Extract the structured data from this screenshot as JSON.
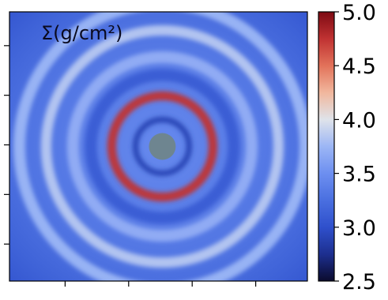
{
  "chart_data": {
    "type": "heatmap",
    "title": "Σ(g/cm²)",
    "xlabel": "",
    "ylabel": "",
    "colorbar": {
      "min": 2.5,
      "max": 5.0,
      "ticks": [
        2.5,
        3.0,
        3.5,
        4.0,
        4.5,
        5.0
      ],
      "tick_labels": [
        "2.5",
        "3.0",
        "3.5",
        "4.0",
        "4.5",
        "5.0"
      ],
      "stops": [
        {
          "value": 2.5,
          "color": "#0b0b2e"
        },
        {
          "value": 2.75,
          "color": "#1d2f8f"
        },
        {
          "value": 3.0,
          "color": "#2f50cc"
        },
        {
          "value": 3.25,
          "color": "#4a6fe0"
        },
        {
          "value": 3.5,
          "color": "#6d8ff0"
        },
        {
          "value": 3.75,
          "color": "#9cb6f5"
        },
        {
          "value": 4.0,
          "color": "#dfe3ea"
        },
        {
          "value": 4.25,
          "color": "#f1b79d"
        },
        {
          "value": 4.5,
          "color": "#e2725a"
        },
        {
          "value": 4.75,
          "color": "#c03232"
        },
        {
          "value": 5.0,
          "color": "#7d0a13"
        }
      ]
    },
    "background_level": 3.3,
    "central_hole_color": "#6e8590",
    "rings": [
      {
        "radius_frac": 0.09,
        "width_frac": 0.02,
        "value": 2.9
      },
      {
        "radius_frac": 0.17,
        "width_frac": 0.03,
        "value": 4.75
      },
      {
        "radius_frac": 0.24,
        "width_frac": 0.04,
        "value": 3.1
      },
      {
        "radius_frac": 0.3,
        "width_frac": 0.04,
        "value": 3.7
      },
      {
        "radius_frac": 0.39,
        "width_frac": 0.035,
        "value": 3.85
      },
      {
        "radius_frac": 0.48,
        "width_frac": 0.04,
        "value": 3.75
      }
    ],
    "x_ticks": 4,
    "y_ticks": 5,
    "grid": false
  }
}
